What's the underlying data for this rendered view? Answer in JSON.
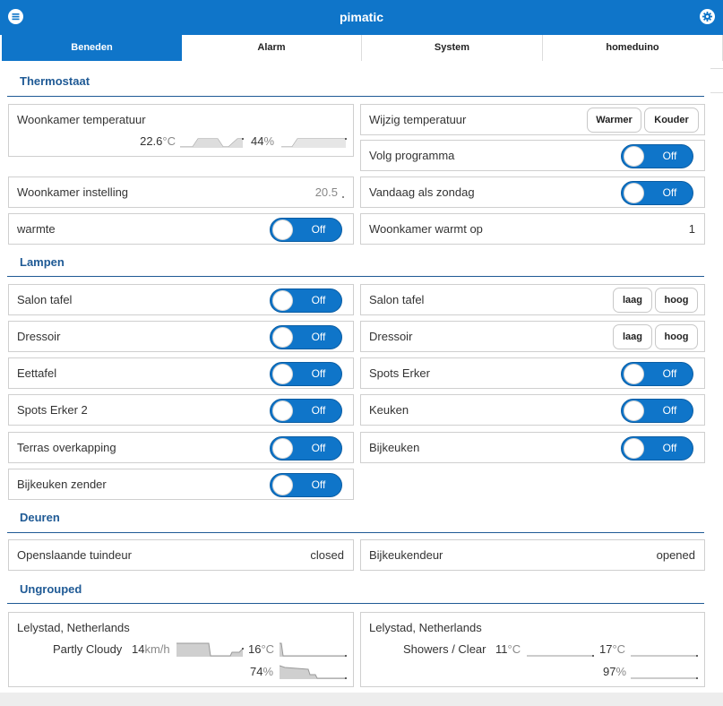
{
  "header": {
    "title": "pimatic",
    "menu_icon": "menu-icon",
    "settings_icon": "gear-icon",
    "color": "#0f75c9"
  },
  "tabs": [
    {
      "label": "Beneden",
      "active": true
    },
    {
      "label": "Alarm",
      "active": false
    },
    {
      "label": "System",
      "active": false
    },
    {
      "label": "homeduino",
      "active": false
    }
  ],
  "groups": {
    "thermostaat": "Thermostaat",
    "lampen": "Lampen",
    "deuren": "Deuren",
    "ungrouped": "Ungrouped"
  },
  "thermostaat": {
    "temp_sensor": {
      "label": "Woonkamer temperatuur",
      "temperature": "22.6",
      "temperature_unit": "°C",
      "humidity": "44",
      "humidity_unit": "%"
    },
    "setpoint": {
      "label": "Woonkamer instelling",
      "value": "20.5"
    },
    "warmte": {
      "label": "warmte",
      "state": "Off"
    },
    "wijzig": {
      "label": "Wijzig temperatuur",
      "warmer": "Warmer",
      "kouder": "Kouder"
    },
    "volg": {
      "label": "Volg programma",
      "state": "Off"
    },
    "zondag": {
      "label": "Vandaag als zondag",
      "state": "Off"
    },
    "warmt_op": {
      "label": "Woonkamer warmt op",
      "value": "1"
    }
  },
  "lampen": {
    "left": [
      {
        "label": "Salon tafel",
        "state": "Off"
      },
      {
        "label": "Dressoir",
        "state": "Off"
      },
      {
        "label": "Eettafel",
        "state": "Off"
      },
      {
        "label": "Spots Erker 2",
        "state": "Off"
      },
      {
        "label": "Terras overkapping",
        "state": "Off"
      },
      {
        "label": "Bijkeuken zender",
        "state": "Off"
      }
    ],
    "right_dimmers": [
      {
        "label": "Salon tafel",
        "low": "laag",
        "high": "hoog"
      },
      {
        "label": "Dressoir",
        "low": "laag",
        "high": "hoog"
      }
    ],
    "right_switches": [
      {
        "label": "Spots Erker",
        "state": "Off"
      },
      {
        "label": "Keuken",
        "state": "Off"
      },
      {
        "label": "Bijkeuken",
        "state": "Off"
      }
    ]
  },
  "deuren": [
    {
      "label": "Openslaande tuindeur",
      "value": "closed"
    },
    {
      "label": "Bijkeukendeur",
      "value": "opened"
    }
  ],
  "ungrouped": [
    {
      "label": "Lelystad, Netherlands",
      "status": "Partly Cloudy",
      "wind": "14",
      "wind_unit": "km/h",
      "temperature": "16",
      "temperature_unit": "°C",
      "humidity": "74",
      "humidity_unit": "%"
    },
    {
      "label": "Lelystad, Netherlands",
      "status": "Showers / Clear",
      "temp_low": "11",
      "temp_low_unit": "°C",
      "temperature": "17",
      "temperature_unit": "°C",
      "humidity": "97",
      "humidity_unit": "%"
    }
  ]
}
